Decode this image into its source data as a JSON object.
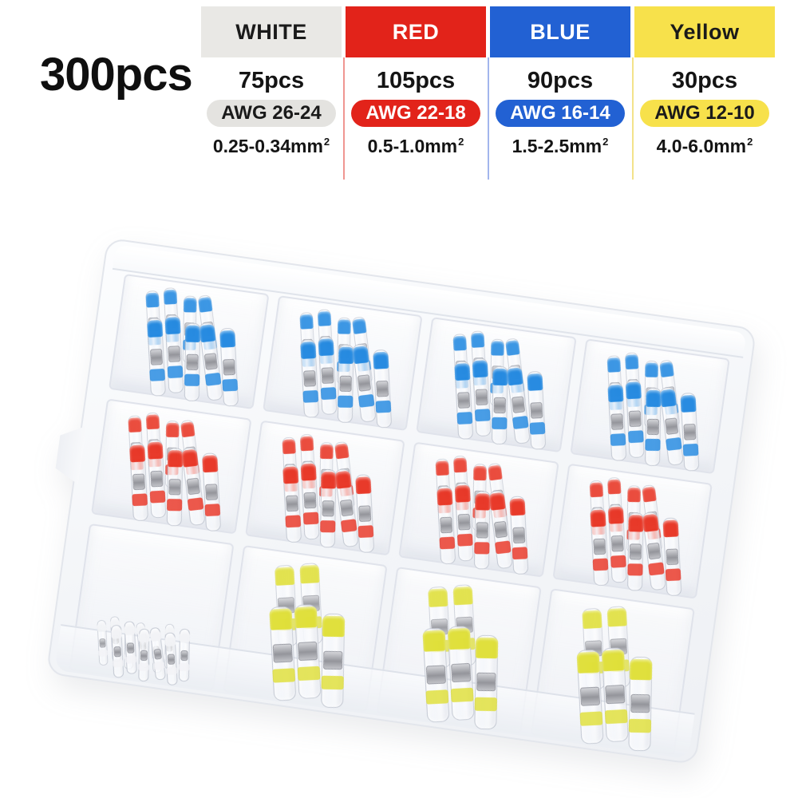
{
  "table": {
    "total": "300pcs",
    "columns": [
      {
        "name": "WHITE",
        "pcs": "75pcs",
        "awg": "AWG 26-24",
        "size": "0.25-0.34mm",
        "sup": "2",
        "header_bg": "#e9e8e5",
        "header_fg": "#1a1a1a",
        "pill_bg": "#e4e3e0",
        "pill_fg": "#1a1a1a"
      },
      {
        "name": "RED",
        "pcs": "105pcs",
        "awg": "AWG 22-18",
        "size": "0.5-1.0mm",
        "sup": "2",
        "header_bg": "#e2231a",
        "header_fg": "#ffffff",
        "pill_bg": "#e2231a",
        "pill_fg": "#ffffff"
      },
      {
        "name": "BLUE",
        "pcs": "90pcs",
        "awg": "AWG 16-14",
        "size": "1.5-2.5mm",
        "sup": "2",
        "header_bg": "#2261d3",
        "header_fg": "#ffffff",
        "pill_bg": "#2261d3",
        "pill_fg": "#ffffff"
      },
      {
        "name": "Yellow",
        "pcs": "30pcs",
        "awg": "AWG 12-10",
        "size": "4.0-6.0mm",
        "sup": "2",
        "header_bg": "#f7e14b",
        "header_fg": "#1a1a1a",
        "pill_bg": "#f7e14b",
        "pill_fg": "#1a1a1a"
      }
    ],
    "dividers": [
      "rgba(226,45,35,0.5)",
      "rgba(70,110,220,0.5)",
      "rgba(236,210,75,0.65)"
    ]
  },
  "box": {
    "palette": {
      "blue": "#1d86e0",
      "red": "#e8301f",
      "yellow": "#dfdf33",
      "white": "#f2f3f6",
      "solder": "#9a9ba1"
    },
    "compartments": [
      {
        "color": "blue",
        "size": "md",
        "back": 4,
        "front": 5
      },
      {
        "color": "blue",
        "size": "md",
        "back": 4,
        "front": 5
      },
      {
        "color": "blue",
        "size": "md",
        "back": 4,
        "front": 5
      },
      {
        "color": "blue",
        "size": "md",
        "back": 4,
        "front": 5
      },
      {
        "color": "red",
        "size": "md",
        "back": 4,
        "front": 5
      },
      {
        "color": "red",
        "size": "md",
        "back": 4,
        "front": 5
      },
      {
        "color": "red",
        "size": "md",
        "back": 4,
        "front": 5
      },
      {
        "color": "red",
        "size": "md",
        "back": 4,
        "front": 5
      },
      {
        "color": "white",
        "size": "sm",
        "back": 6,
        "front": 6
      },
      {
        "color": "yellow",
        "size": "lg",
        "back": 2,
        "front": 3
      },
      {
        "color": "yellow",
        "size": "lg",
        "back": 2,
        "front": 3
      },
      {
        "color": "yellow",
        "size": "lg",
        "back": 2,
        "front": 3
      }
    ]
  }
}
